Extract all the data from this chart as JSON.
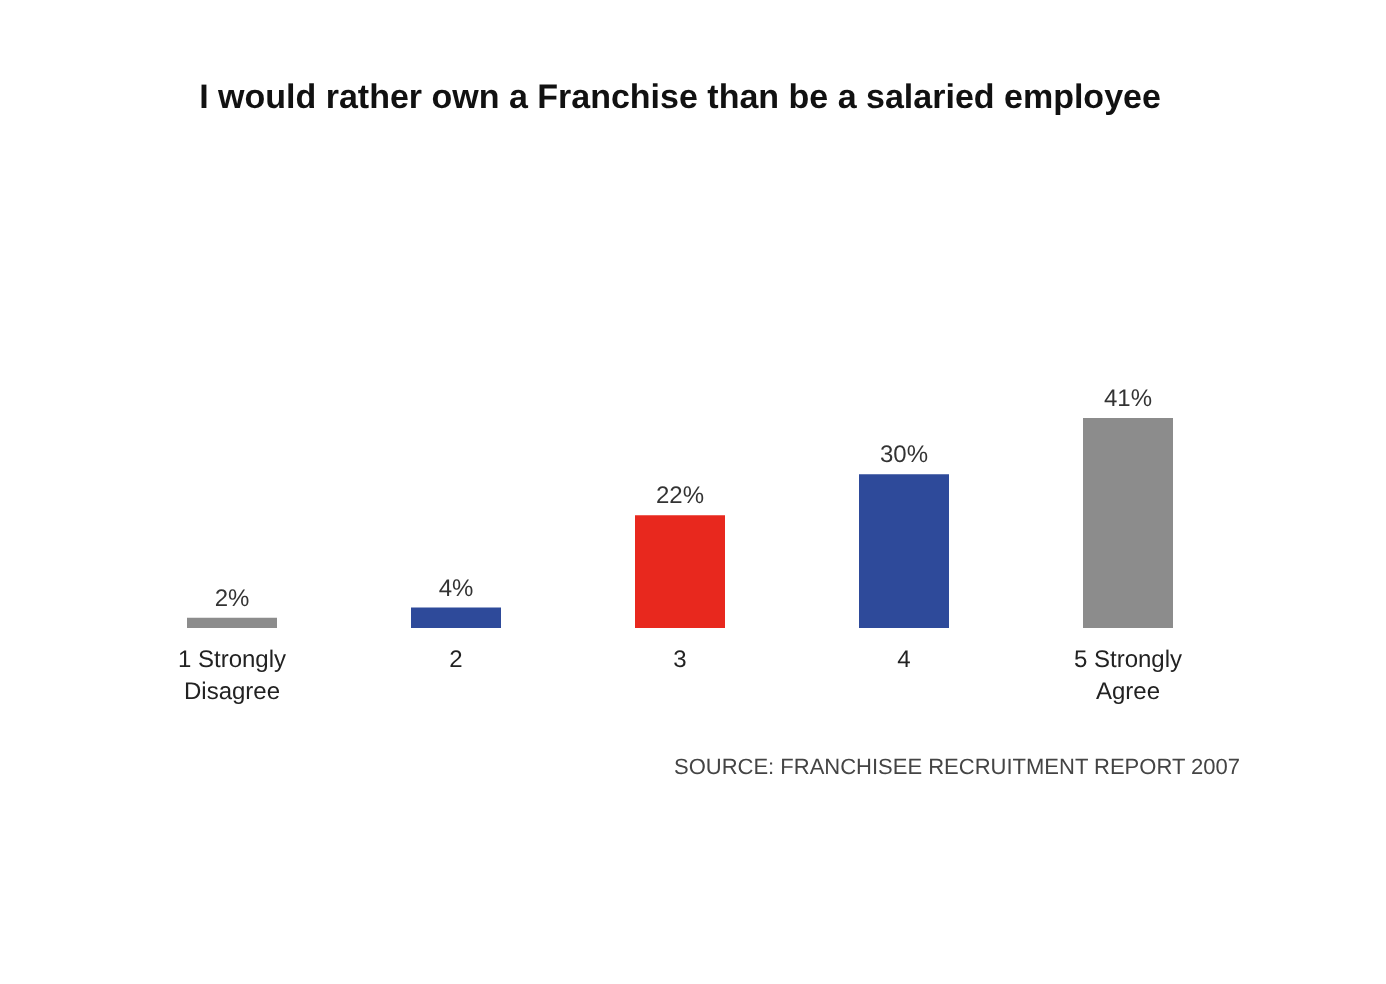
{
  "chart_data": {
    "type": "bar",
    "title": "I would rather own a Franchise than be a salaried employee",
    "categories": [
      "1 Strongly\nDisagree",
      "2",
      "3",
      "4",
      "5 Strongly\nAgree"
    ],
    "values": [
      2,
      4,
      22,
      30,
      41
    ],
    "colors": [
      "#8c8c8c",
      "#2e4a9a",
      "#e8281e",
      "#2e4a9a",
      "#8c8c8c"
    ],
    "value_labels": [
      "2%",
      "4%",
      "22%",
      "30%",
      "41%"
    ],
    "grid": false,
    "annotations": [
      "SOURCE: FRANCHISEE RECRUITMENT REPORT 2007"
    ]
  }
}
